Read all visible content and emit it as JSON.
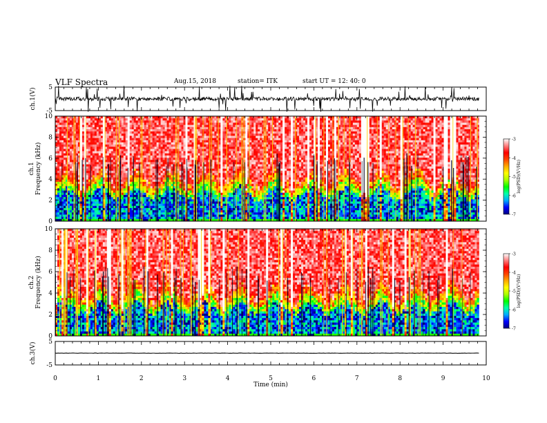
{
  "header": {
    "title": "VLF Spectra",
    "date": "Aug.15, 2018",
    "station": "station= ITK",
    "start": "start UT =  12: 40: 0"
  },
  "chart_data": {
    "type": "heatmap",
    "xlabel": "Time (min)",
    "xlim": [
      0,
      10
    ],
    "xticks": [
      "0",
      "1",
      "2",
      "3",
      "4",
      "5",
      "6",
      "7",
      "8",
      "9",
      "10"
    ],
    "data_end_min": 9.83,
    "panels": [
      {
        "id": "ch1-wave",
        "type": "line",
        "ylabel": "ch.1(V)",
        "ylim": [
          -5,
          5
        ],
        "yticks": [
          "5",
          "-5"
        ],
        "baseline": 0
      },
      {
        "id": "ch1-spec",
        "type": "heatmap",
        "ylabel_top": "ch.1",
        "ylabel": "Frequency (kHz)",
        "ylim": [
          0,
          10
        ],
        "yticks": [
          "0",
          "2",
          "4",
          "6",
          "8",
          "10"
        ]
      },
      {
        "id": "ch2-spec",
        "type": "heatmap",
        "ylabel_top": "ch.2",
        "ylabel": "Frequency (kHz)",
        "ylim": [
          0,
          10
        ],
        "yticks": [
          "0",
          "2",
          "4",
          "6",
          "8",
          "10"
        ]
      },
      {
        "id": "ch3-wave",
        "type": "line",
        "ylabel": "ch.3(V)",
        "ylim": [
          -5,
          5
        ],
        "yticks": [
          "5",
          "-5"
        ],
        "baseline": 0
      }
    ],
    "colorbar": {
      "label": "log(PSD)(V²/Hz)",
      "range": [
        -7,
        -3
      ],
      "ticks": [
        "-3",
        "-4",
        "-5",
        "-6",
        "-7"
      ],
      "colormap": [
        "#000080",
        "#0000ff",
        "#00aaff",
        "#00ffaa",
        "#00ff00",
        "#aaff00",
        "#ffff00",
        "#ffaa00",
        "#ff4400",
        "#ff0000",
        "#ff8080",
        "#ffffff"
      ]
    }
  }
}
